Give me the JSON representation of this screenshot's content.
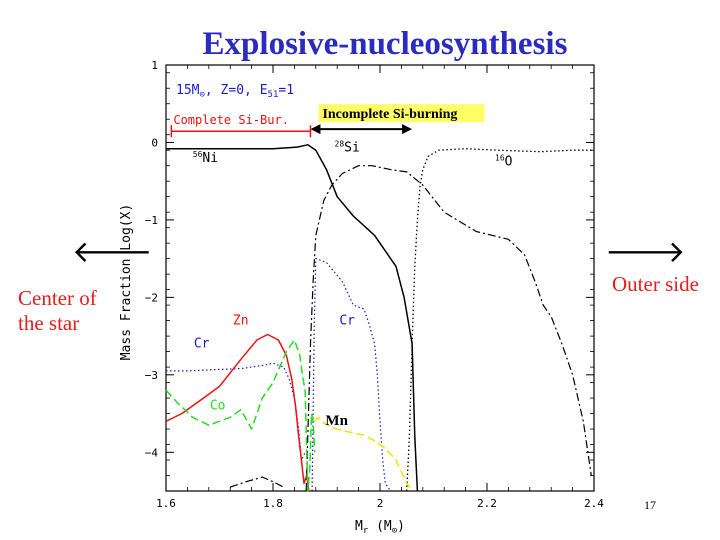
{
  "slide": {
    "title": "Explosive-nucleosynthesis",
    "left_label_line1": "Center of",
    "left_label_line2": "the star",
    "right_label": "Outer side",
    "left_arrow_glyph": "🡐",
    "right_arrow_glyph": "🡒",
    "page_number": "17"
  },
  "colors": {
    "title": "#2b2bbf",
    "label_red": "#e0201c",
    "black": "#000000",
    "blue": "#1a1acc",
    "red": "#ee1111",
    "green": "#22dd22",
    "yellow": "#e8e800",
    "highlight": "#ffff66"
  },
  "chart_data": {
    "type": "line",
    "xlabel_main": "M",
    "xlabel_sub": "r",
    "xlabel_unit_open": " (M",
    "xlabel_unit_sub": "⊙",
    "xlabel_unit_close": ")",
    "ylabel": "Mass Fraction Log(X)",
    "xlim": [
      1.6,
      2.4
    ],
    "ylim": [
      -4.5,
      1
    ],
    "x_ticks": [
      1.6,
      1.8,
      2,
      2.2,
      2.4
    ],
    "x_tick_labels": [
      "1.6",
      "1.8",
      "2",
      "2.2",
      "2.4"
    ],
    "y_ticks": [
      1,
      0,
      -1,
      -2,
      -3,
      -4
    ],
    "y_tick_labels": [
      "1",
      "0",
      "−1",
      "−2",
      "−3",
      "−4"
    ],
    "model_label": {
      "part1": "15M",
      "sun_sub": "⊙",
      "part2": ", Z=0, E",
      "e_sub": "51",
      "part3": "=1"
    },
    "regions": [
      {
        "label": "Complete Si-Bur.",
        "x_start": 1.61,
        "x_end": 1.87,
        "y": 0.3
      },
      {
        "label": "Incomplete Si-burning",
        "x_start": 1.87,
        "x_end": 2.06,
        "y": 0.12
      }
    ],
    "annotations": [
      {
        "text": "56",
        "rest": "Ni",
        "x": 1.65,
        "y": -0.25
      },
      {
        "text": "28",
        "rest": "Si",
        "x": 1.915,
        "y": -0.12
      },
      {
        "text": "16",
        "rest": "O",
        "x": 2.215,
        "y": -0.3
      },
      {
        "text": "Cr",
        "x": 1.652,
        "y": -2.65
      },
      {
        "text": "Zn",
        "x": 1.725,
        "y": -2.35
      },
      {
        "text": "Co",
        "x": 1.682,
        "y": -3.45
      },
      {
        "text": "Cr",
        "x": 1.924,
        "y": -2.35
      },
      {
        "text": "Mn",
        "x": 1.898,
        "y": -3.65
      }
    ],
    "series": [
      {
        "name": "56Ni",
        "color_key": "black",
        "style": "solid",
        "width": 1.5,
        "x": [
          1.6,
          1.7,
          1.8,
          1.845,
          1.865,
          1.88,
          1.9,
          1.92,
          1.95,
          1.99,
          2.03,
          2.045,
          2.06,
          2.065,
          2.07
        ],
        "y": [
          -0.08,
          -0.08,
          -0.08,
          -0.06,
          -0.03,
          -0.1,
          -0.35,
          -0.7,
          -0.95,
          -1.2,
          -1.6,
          -2.0,
          -2.6,
          -3.8,
          -4.5
        ]
      },
      {
        "name": "28Si",
        "color_key": "black",
        "style": "dashdot",
        "width": 1.2,
        "x": [
          1.862,
          1.87,
          1.875,
          1.88,
          1.895,
          1.91,
          1.93,
          1.96,
          1.985,
          2.02,
          2.05,
          2.08,
          2.12,
          2.18,
          2.24,
          2.27,
          2.29,
          2.305,
          2.32,
          2.34,
          2.36,
          2.38,
          2.395
        ],
        "y": [
          -4.5,
          -2.6,
          -1.8,
          -1.2,
          -0.75,
          -0.55,
          -0.4,
          -0.3,
          -0.3,
          -0.35,
          -0.38,
          -0.55,
          -0.9,
          -1.15,
          -1.25,
          -1.45,
          -1.8,
          -2.1,
          -2.25,
          -2.6,
          -3.0,
          -3.6,
          -4.3
        ]
      },
      {
        "name": "16O",
        "color_key": "black",
        "style": "dotted",
        "width": 1.3,
        "x": [
          2.05,
          2.055,
          2.06,
          2.065,
          2.07,
          2.075,
          2.08,
          2.09,
          2.11,
          2.16,
          2.22,
          2.3,
          2.36,
          2.4
        ],
        "y": [
          -4.5,
          -3.8,
          -2.6,
          -1.6,
          -1.0,
          -0.55,
          -0.35,
          -0.18,
          -0.1,
          -0.08,
          -0.1,
          -0.12,
          -0.1,
          -0.1
        ]
      },
      {
        "name": "Cr (left)",
        "color_key": "blue",
        "style": "dotted",
        "width": 1.2,
        "x": [
          1.6,
          1.64,
          1.7,
          1.74,
          1.78,
          1.8,
          1.82,
          1.83,
          1.84,
          1.848,
          1.853,
          1.86
        ],
        "y": [
          -2.95,
          -2.95,
          -2.93,
          -2.92,
          -2.88,
          -2.85,
          -2.9,
          -3.05,
          -3.3,
          -3.7,
          -4.1,
          -4.0
        ]
      },
      {
        "name": "Cr (right)",
        "color_key": "blue",
        "style": "dotted",
        "width": 1.2,
        "x": [
          1.873,
          1.877,
          1.88,
          1.9,
          1.93,
          1.95,
          1.97,
          1.98,
          1.99,
          1.995,
          2.0,
          2.005,
          2.01,
          2.02
        ],
        "y": [
          -4.5,
          -2.4,
          -1.5,
          -1.55,
          -1.8,
          -2.1,
          -2.15,
          -2.35,
          -2.6,
          -3.0,
          -3.6,
          -4.1,
          -4.4,
          -4.5
        ]
      },
      {
        "name": "Zn",
        "color_key": "red",
        "style": "solid",
        "width": 1.5,
        "x": [
          1.6,
          1.63,
          1.67,
          1.7,
          1.74,
          1.77,
          1.79,
          1.81,
          1.825,
          1.835,
          1.842,
          1.848,
          1.853,
          1.858,
          1.863,
          1.867
        ],
        "y": [
          -3.6,
          -3.5,
          -3.3,
          -3.15,
          -2.8,
          -2.55,
          -2.48,
          -2.55,
          -2.75,
          -3.05,
          -3.4,
          -3.8,
          -4.1,
          -4.4,
          -4.3,
          -4.5
        ]
      },
      {
        "name": "Co",
        "color_key": "green",
        "style": "dashed",
        "width": 1.5,
        "x": [
          1.6,
          1.62,
          1.65,
          1.68,
          1.72,
          1.74,
          1.76,
          1.78,
          1.8,
          1.825,
          1.84,
          1.85,
          1.855,
          1.86,
          1.865,
          1.869,
          1.872,
          1.875,
          1.878
        ],
        "y": [
          -3.2,
          -3.35,
          -3.55,
          -3.65,
          -3.55,
          -3.45,
          -3.7,
          -3.3,
          -3.1,
          -2.7,
          -2.55,
          -2.75,
          -3.0,
          -3.2,
          -4.5,
          -4.2,
          -3.5,
          -3.6,
          -4.0
        ]
      },
      {
        "name": "Mn",
        "color_key": "yellow",
        "style": "dashed",
        "width": 1.5,
        "x": [
          1.877,
          1.885,
          1.895,
          1.91,
          1.93,
          1.95,
          1.97,
          1.99,
          2.01,
          2.03,
          2.05,
          2.06
        ],
        "y": [
          -3.6,
          -3.55,
          -3.62,
          -3.68,
          -3.72,
          -3.75,
          -3.78,
          -3.85,
          -3.95,
          -4.1,
          -4.4,
          -4.5
        ]
      },
      {
        "name": "Bottom fragment",
        "color_key": "black",
        "style": "dashdot",
        "width": 1.2,
        "x": [
          1.72,
          1.75,
          1.78,
          1.8,
          1.82
        ],
        "y": [
          -4.45,
          -4.38,
          -4.32,
          -4.38,
          -4.45
        ]
      }
    ]
  }
}
